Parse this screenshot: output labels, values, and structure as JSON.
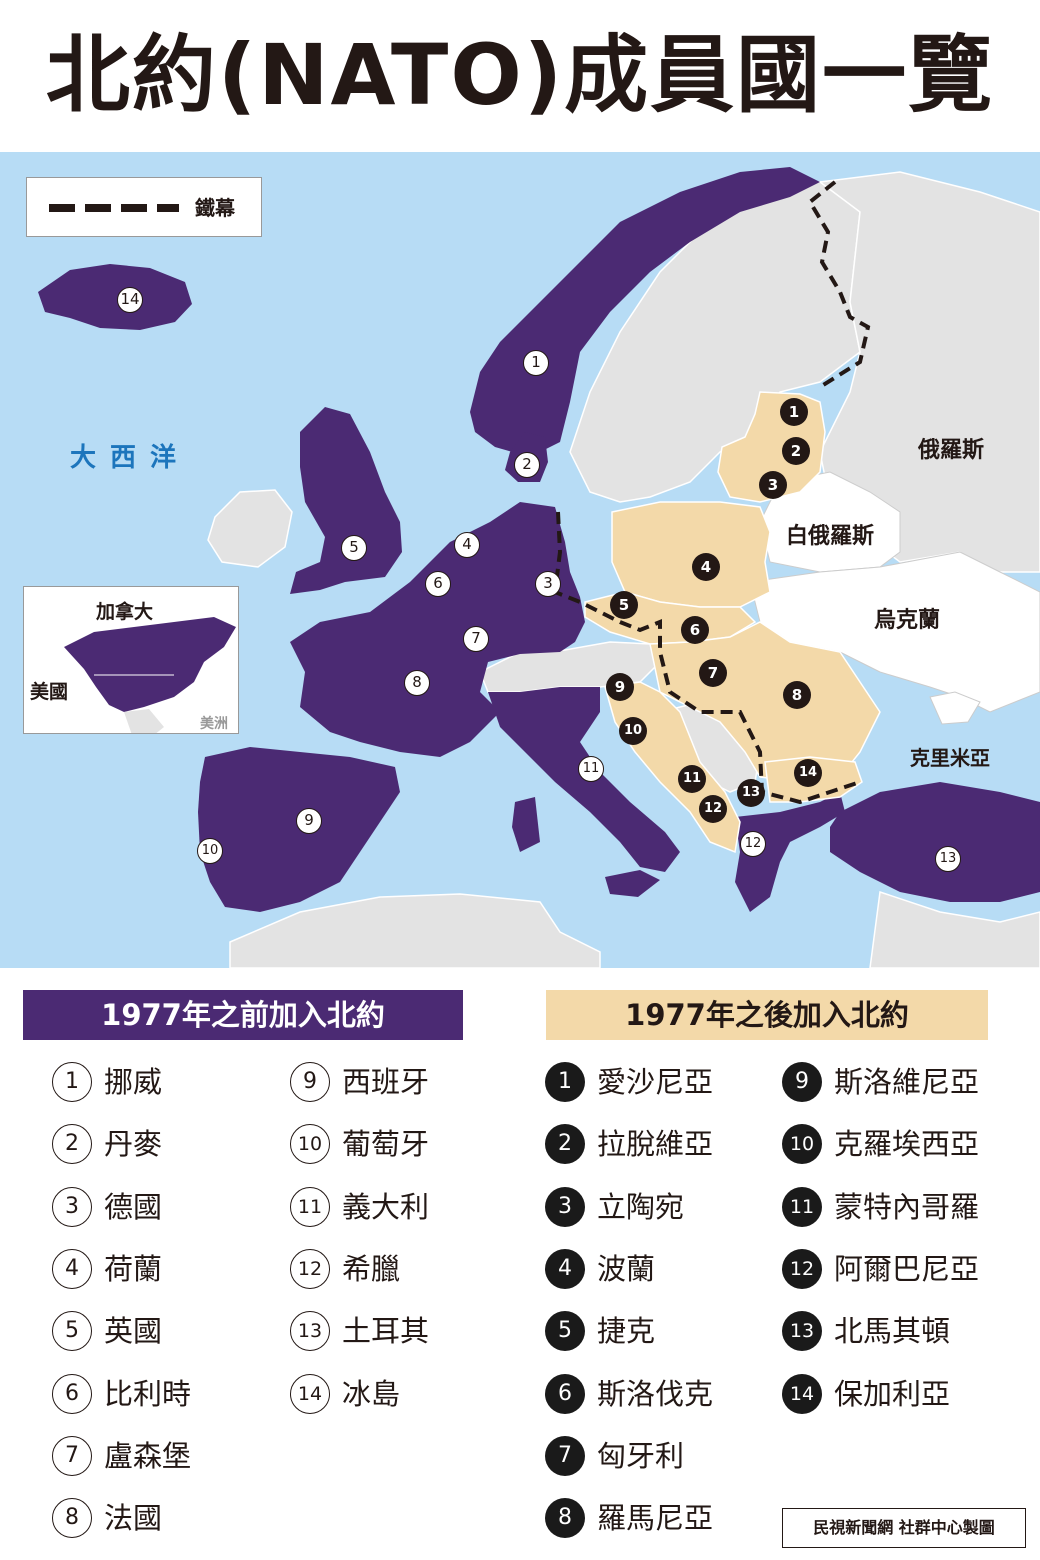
{
  "title": "北約(NATO)成員國一覽",
  "legend": {
    "label": "鐵幕"
  },
  "map_labels": {
    "ocean": "大西洋",
    "russia": "俄羅斯",
    "belarus": "白俄羅斯",
    "ukraine": "烏克蘭",
    "crimea": "克里米亞"
  },
  "inset": {
    "canada": "加拿大",
    "usa": "美國",
    "americas": "美洲"
  },
  "colors": {
    "sea": "#b7dcf5",
    "before_1977": "#4b2a73",
    "after_1977": "#f3d9a9",
    "non_member": "#e3e3e3",
    "other_land": "#ffffff"
  },
  "map_badges_before": [
    "1",
    "2",
    "3",
    "4",
    "5",
    "6",
    "7",
    "8",
    "9",
    "10",
    "11",
    "12",
    "13",
    "14"
  ],
  "map_badges_after": [
    "1",
    "2",
    "3",
    "4",
    "5",
    "6",
    "7",
    "8",
    "9",
    "10",
    "11",
    "12",
    "13",
    "14"
  ],
  "sections": {
    "before": {
      "heading": "1977年之前加入北約",
      "items": [
        {
          "num": "1",
          "name": "挪威"
        },
        {
          "num": "2",
          "name": "丹麥"
        },
        {
          "num": "3",
          "name": "德國"
        },
        {
          "num": "4",
          "name": "荷蘭"
        },
        {
          "num": "5",
          "name": "英國"
        },
        {
          "num": "6",
          "name": "比利時"
        },
        {
          "num": "7",
          "name": "盧森堡"
        },
        {
          "num": "8",
          "name": "法國"
        },
        {
          "num": "9",
          "name": "西班牙"
        },
        {
          "num": "10",
          "name": "葡萄牙"
        },
        {
          "num": "11",
          "name": "義大利"
        },
        {
          "num": "12",
          "name": "希臘"
        },
        {
          "num": "13",
          "name": "土耳其"
        },
        {
          "num": "14",
          "name": "冰島"
        }
      ]
    },
    "after": {
      "heading": "1977年之後加入北約",
      "items": [
        {
          "num": "1",
          "name": "愛沙尼亞"
        },
        {
          "num": "2",
          "name": "拉脫維亞"
        },
        {
          "num": "3",
          "name": "立陶宛"
        },
        {
          "num": "4",
          "name": "波蘭"
        },
        {
          "num": "5",
          "name": "捷克"
        },
        {
          "num": "6",
          "name": "斯洛伐克"
        },
        {
          "num": "7",
          "name": "匈牙利"
        },
        {
          "num": "8",
          "name": "羅馬尼亞"
        },
        {
          "num": "9",
          "name": "斯洛維尼亞"
        },
        {
          "num": "10",
          "name": "克羅埃西亞"
        },
        {
          "num": "11",
          "name": "蒙特內哥羅"
        },
        {
          "num": "12",
          "name": "阿爾巴尼亞"
        },
        {
          "num": "13",
          "name": "北馬其頓"
        },
        {
          "num": "14",
          "name": "保加利亞"
        }
      ]
    }
  },
  "credit": "民視新聞網 社群中心製圖"
}
